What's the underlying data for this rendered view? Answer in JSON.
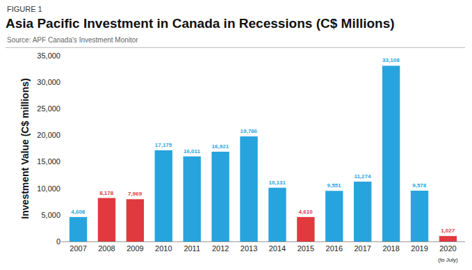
{
  "chart_data": {
    "type": "bar",
    "figure_label": "FIGURE 1",
    "title": "Asia Pacific Investment in Canada in Recessions (C$ Millions)",
    "subtitle": "Source: APF Canada's Investment Monitor",
    "y_label": "Investment Value (C$ millions)",
    "categories": [
      "2007",
      "2008",
      "2009",
      "2010",
      "2011",
      "2012",
      "2013",
      "2014",
      "2015",
      "2016",
      "2017",
      "2018",
      "2019",
      "2020 (to July)"
    ],
    "values": [
      4608,
      8178,
      7969,
      17175,
      16011,
      16921,
      19786,
      10131,
      4610,
      9551,
      11274,
      33108,
      9578,
      1027
    ],
    "value_labels": [
      "4,608",
      "8,178",
      "7,969",
      "17,175",
      "16,011",
      "16,921",
      "19,786",
      "10,131",
      "4,610",
      "9,551",
      "11,274",
      "33,108",
      "9,578",
      "1,027"
    ],
    "colors": [
      "#27a4dd",
      "#e0393e",
      "#e0393e",
      "#27a4dd",
      "#27a4dd",
      "#27a4dd",
      "#27a4dd",
      "#27a4dd",
      "#e0393e",
      "#27a4dd",
      "#27a4dd",
      "#27a4dd",
      "#27a4dd",
      "#e0393e"
    ],
    "ylim": [
      0,
      35000
    ],
    "yticks": [
      0,
      {
        "value": 5000,
        "label": "5,000"
      },
      {
        "value": 10000,
        "label": "10,000"
      },
      {
        "value": 15000,
        "label": "15,000"
      },
      {
        "value": 20000,
        "label": "20,000"
      },
      {
        "value": 25000,
        "label": "25,000"
      },
      {
        "value": 30000,
        "label": "30,000"
      },
      {
        "value": 35000,
        "label": "35,000"
      }
    ],
    "grid": false,
    "data_labels": true
  }
}
